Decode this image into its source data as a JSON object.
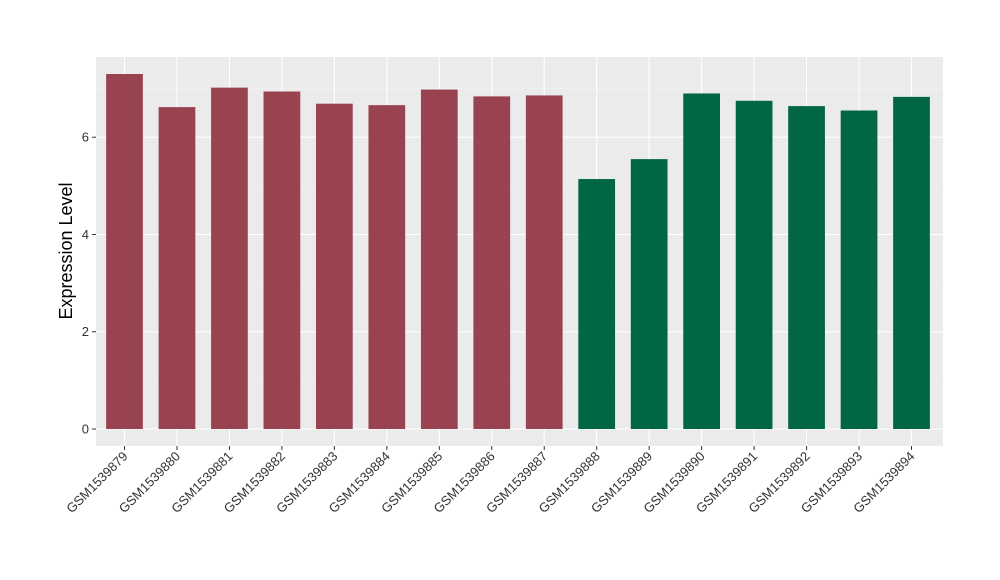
{
  "chart_data": {
    "type": "bar",
    "title": "",
    "xlabel": "",
    "ylabel": "Expression Level",
    "ylim": [
      0,
      7.65
    ],
    "y_ticks": [
      0,
      2,
      4,
      6
    ],
    "grid": true,
    "legend": "none",
    "categories": [
      "GSM1539879",
      "GSM1539880",
      "GSM1539881",
      "GSM1539882",
      "GSM1539883",
      "GSM1539884",
      "GSM1539885",
      "GSM1539886",
      "GSM1539887",
      "GSM1539888",
      "GSM1539889",
      "GSM1539890",
      "GSM1539891",
      "GSM1539892",
      "GSM1539893",
      "GSM1539894"
    ],
    "values": [
      7.3,
      6.62,
      7.02,
      6.94,
      6.69,
      6.66,
      6.98,
      6.84,
      6.86,
      5.14,
      5.55,
      6.9,
      6.75,
      6.64,
      6.55,
      6.83
    ],
    "bar_groups": [
      0,
      0,
      0,
      0,
      0,
      0,
      0,
      0,
      0,
      1,
      1,
      1,
      1,
      1,
      1,
      1
    ],
    "colors": [
      "#9A4350",
      "#006644"
    ]
  }
}
